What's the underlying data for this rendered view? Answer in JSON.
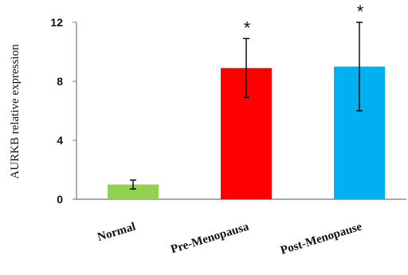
{
  "chart_data": {
    "type": "bar",
    "categories": [
      "Normal",
      "Pre-Menopausa",
      "Post-Menopause"
    ],
    "values": [
      1.0,
      8.9,
      9.0
    ],
    "error": [
      0.3,
      2.0,
      3.0
    ],
    "significance": [
      "",
      "*",
      "*"
    ],
    "colors": [
      "#92d050",
      "#ff0000",
      "#00b0f0"
    ],
    "title": "",
    "xlabel": "",
    "ylabel": "AURKB relative expression",
    "ylim": [
      0,
      12
    ],
    "yticks": [
      "0",
      "4",
      "8",
      "12"
    ],
    "grid": false,
    "legend": "none"
  }
}
